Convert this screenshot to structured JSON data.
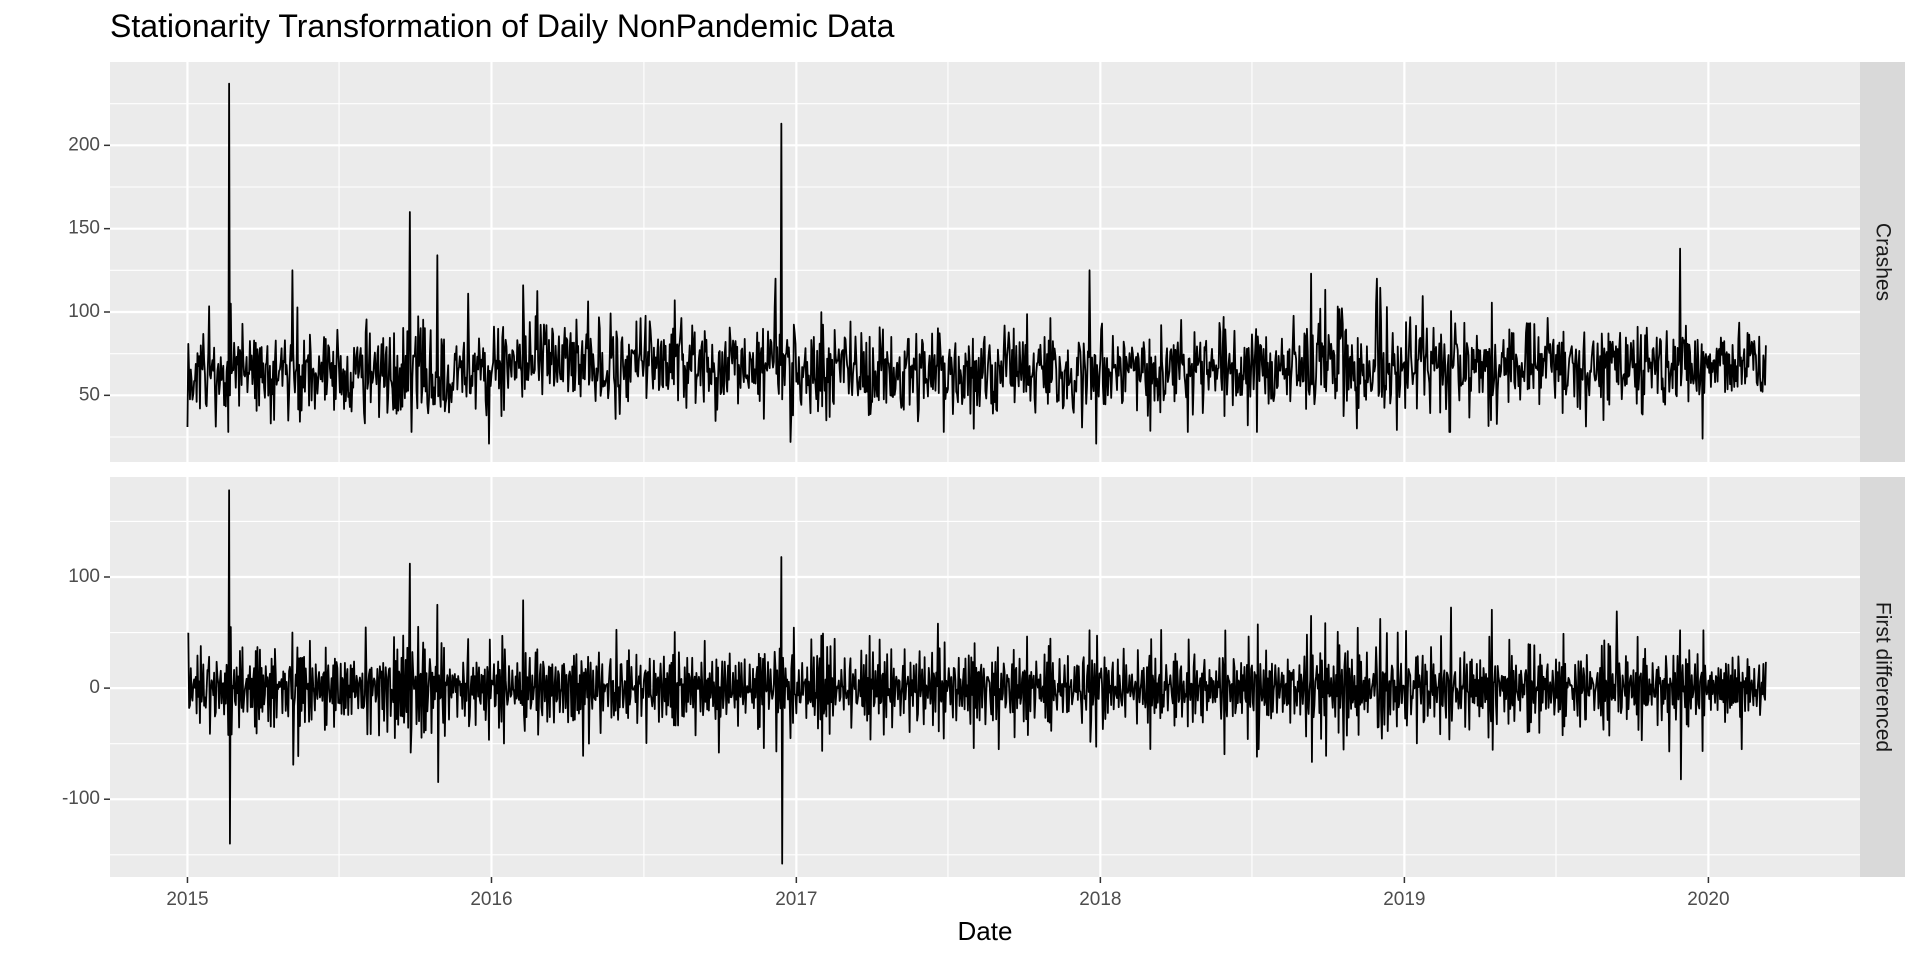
{
  "chart_data": {
    "type": "line",
    "title": "Stationarity Transformation of Daily NonPandemic Data",
    "xlabel": "Date",
    "ylabel": "",
    "x_ticks": [
      "2015",
      "2016",
      "2017",
      "2018",
      "2019",
      "2020"
    ],
    "x_range": [
      "2014-09-30",
      "2020-07-01"
    ],
    "date_range": [
      "2015-01-01",
      "2020-03-10"
    ],
    "grid": true,
    "legend": "none",
    "line_color": "#000000",
    "panels": [
      {
        "strip_label": "Crashes",
        "ylim": [
          10,
          250
        ],
        "y_ticks": [
          50,
          100,
          150,
          200
        ],
        "y_tick_labels": [
          "50",
          "100",
          "150",
          "200"
        ],
        "typical_range": [
          40,
          95
        ],
        "mean_level": 66,
        "spikes": [
          {
            "date": "2015-01-01",
            "value": 31
          },
          {
            "date": "2015-02-20",
            "value": 237
          },
          {
            "date": "2015-02-22",
            "value": 105
          },
          {
            "date": "2015-05-07",
            "value": 125
          },
          {
            "date": "2015-09-25",
            "value": 160
          },
          {
            "date": "2015-10-28",
            "value": 134
          },
          {
            "date": "2015-12-04",
            "value": 111
          },
          {
            "date": "2015-12-29",
            "value": 21
          },
          {
            "date": "2016-02-08",
            "value": 116
          },
          {
            "date": "2016-12-07",
            "value": 120
          },
          {
            "date": "2016-12-14",
            "value": 213
          },
          {
            "date": "2016-12-25",
            "value": 22
          },
          {
            "date": "2017-12-19",
            "value": 125
          },
          {
            "date": "2017-12-27",
            "value": 21
          },
          {
            "date": "2018-09-11",
            "value": 123
          },
          {
            "date": "2018-11-29",
            "value": 120
          },
          {
            "date": "2019-11-28",
            "value": 138
          },
          {
            "date": "2019-12-25",
            "value": 24
          },
          {
            "date": "2020-03-10",
            "value": 80
          }
        ]
      },
      {
        "strip_label": "First differenced",
        "ylim": [
          -170,
          190
        ],
        "y_ticks": [
          -100,
          0,
          100
        ],
        "y_tick_labels": [
          "-100",
          "0",
          "100"
        ],
        "typical_range": [
          -30,
          30
        ],
        "mean_level": 0,
        "spikes": [
          {
            "date": "2015-02-20",
            "value": 178
          },
          {
            "date": "2015-02-21",
            "value": -140
          },
          {
            "date": "2015-05-07",
            "value": 50
          },
          {
            "date": "2015-05-08",
            "value": -69
          },
          {
            "date": "2015-09-25",
            "value": 112
          },
          {
            "date": "2015-09-26",
            "value": -58
          },
          {
            "date": "2015-10-28",
            "value": 75
          },
          {
            "date": "2016-02-08",
            "value": 79
          },
          {
            "date": "2016-04-20",
            "value": -61
          },
          {
            "date": "2016-09-30",
            "value": -58
          },
          {
            "date": "2016-12-14",
            "value": 118
          },
          {
            "date": "2016-12-15",
            "value": -158
          },
          {
            "date": "2017-06-20",
            "value": 58
          },
          {
            "date": "2017-09-01",
            "value": -55
          },
          {
            "date": "2018-07-10",
            "value": -55
          },
          {
            "date": "2019-09-13",
            "value": 69
          },
          {
            "date": "2019-11-15",
            "value": -57
          },
          {
            "date": "2019-11-28",
            "value": 52
          },
          {
            "date": "2020-02-10",
            "value": -55
          }
        ]
      }
    ]
  }
}
